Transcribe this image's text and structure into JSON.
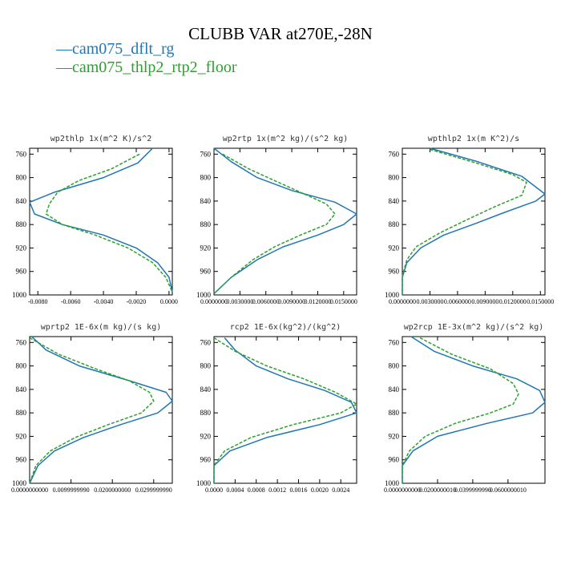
{
  "page": {
    "title": "CLUBB VAR at270E,-28N"
  },
  "legend": [
    {
      "label": "cam075_dflt_rg",
      "color": "#1f77b4",
      "style": "solid"
    },
    {
      "label": "cam075_thlp2_rtp2_floor",
      "color": "#2ca02c",
      "style": "dashed"
    }
  ],
  "chart_data": [
    {
      "type": "line",
      "title": "wp2thlp  1x(m^2 K)/s^2",
      "x_ticks": [
        "-0.0080",
        "-0.0060",
        "-0.0040",
        "-0.0020",
        "0.0000"
      ],
      "xlim": [
        -0.0085,
        0.0002
      ],
      "y_ticks": [
        "760",
        "800",
        "840",
        "880",
        "920",
        "960",
        "1000"
      ],
      "ylim": [
        1000,
        750
      ],
      "series": [
        {
          "color": "#1f77b4",
          "dashed": false,
          "points": [
            [
              -0.001,
              750
            ],
            [
              -0.0019,
              775
            ],
            [
              -0.004,
              800
            ],
            [
              -0.007,
              825
            ],
            [
              -0.0085,
              842
            ],
            [
              -0.0082,
              862
            ],
            [
              -0.0065,
              880
            ],
            [
              -0.004,
              898
            ],
            [
              -0.002,
              920
            ],
            [
              -0.0007,
              945
            ],
            [
              0.0,
              970
            ],
            [
              0.0002,
              995
            ]
          ]
        },
        {
          "color": "#2ca02c",
          "dashed": true,
          "points": [
            [
              -0.0018,
              760
            ],
            [
              -0.0035,
              785
            ],
            [
              -0.0055,
              805
            ],
            [
              -0.0068,
              825
            ],
            [
              -0.0073,
              845
            ],
            [
              -0.0075,
              862
            ],
            [
              -0.0065,
              880
            ],
            [
              -0.0045,
              898
            ],
            [
              -0.0025,
              920
            ],
            [
              -0.001,
              945
            ],
            [
              -0.0002,
              970
            ],
            [
              0.0002,
              995
            ]
          ]
        }
      ]
    },
    {
      "type": "line",
      "title": "wp2rtp  1x(m^2 kg)/(s^2 kg)",
      "x_ticks": [
        "0.0000000",
        "0.0030000",
        "0.0060000",
        "0.0090000",
        "0.0120000",
        "0.0150000"
      ],
      "xlim": [
        0,
        0.0165
      ],
      "y_ticks": [
        "760",
        "800",
        "840",
        "880",
        "920",
        "960",
        "1000"
      ],
      "ylim": [
        1000,
        750
      ],
      "series": [
        {
          "color": "#1f77b4",
          "dashed": false,
          "points": [
            [
              0.0,
              750
            ],
            [
              0.002,
              773
            ],
            [
              0.005,
              800
            ],
            [
              0.009,
              822
            ],
            [
              0.014,
              842
            ],
            [
              0.0165,
              862
            ],
            [
              0.015,
              880
            ],
            [
              0.012,
              898
            ],
            [
              0.008,
              918
            ],
            [
              0.005,
              940
            ],
            [
              0.002,
              970
            ],
            [
              0.0,
              998
            ]
          ]
        },
        {
          "color": "#2ca02c",
          "dashed": true,
          "points": [
            [
              0.001,
              760
            ],
            [
              0.004,
              785
            ],
            [
              0.007,
              805
            ],
            [
              0.01,
              825
            ],
            [
              0.013,
              845
            ],
            [
              0.014,
              862
            ],
            [
              0.013,
              880
            ],
            [
              0.01,
              898
            ],
            [
              0.007,
              918
            ],
            [
              0.0045,
              940
            ],
            [
              0.002,
              970
            ],
            [
              0.0,
              998
            ]
          ]
        }
      ]
    },
    {
      "type": "line",
      "title": "wpthlp2  1x(m K^2)/s",
      "x_ticks": [
        "0.0000000",
        "0.0030000",
        "0.0060000",
        "0.0090000",
        "0.0120000",
        "0.0150000"
      ],
      "xlim": [
        0,
        0.0155
      ],
      "y_ticks": [
        "760",
        "800",
        "840",
        "880",
        "920",
        "960",
        "1000"
      ],
      "ylim": [
        1000,
        750
      ],
      "series": [
        {
          "color": "#1f77b4",
          "dashed": false,
          "points": [
            [
              0.003,
              750
            ],
            [
              0.008,
              772
            ],
            [
              0.013,
              798
            ],
            [
              0.0155,
              828
            ],
            [
              0.0145,
              840
            ],
            [
              0.011,
              860
            ],
            [
              0.008,
              878
            ],
            [
              0.0045,
              898
            ],
            [
              0.002,
              920
            ],
            [
              0.0005,
              945
            ],
            [
              0.0,
              970
            ],
            [
              0.0,
              1000
            ]
          ]
        },
        {
          "color": "#2ca02c",
          "dashed": true,
          "points": [
            [
              0.003,
              752
            ],
            [
              0.008,
              775
            ],
            [
              0.012,
              795
            ],
            [
              0.0135,
              808
            ],
            [
              0.013,
              830
            ],
            [
              0.01,
              850
            ],
            [
              0.007,
              872
            ],
            [
              0.004,
              895
            ],
            [
              0.0015,
              918
            ],
            [
              0.0005,
              940
            ],
            [
              0.0,
              968
            ],
            [
              0.0,
              1000
            ]
          ]
        }
      ]
    },
    {
      "type": "line",
      "title": "wprtp2  1E-6x(m kg)/(s kg)",
      "x_ticks": [
        "0.0000000000",
        "0.0099999990",
        "0.0200000000",
        "0.0299999990"
      ],
      "xlim": [
        0,
        0.0345
      ],
      "y_ticks": [
        "760",
        "800",
        "840",
        "880",
        "920",
        "960",
        "1000"
      ],
      "ylim": [
        1000,
        750
      ],
      "series": [
        {
          "color": "#1f77b4",
          "dashed": false,
          "points": [
            [
              0.0005,
              750
            ],
            [
              0.004,
              773
            ],
            [
              0.012,
              800
            ],
            [
              0.024,
              825
            ],
            [
              0.033,
              845
            ],
            [
              0.0345,
              860
            ],
            [
              0.031,
              880
            ],
            [
              0.022,
              900
            ],
            [
              0.013,
              922
            ],
            [
              0.006,
              945
            ],
            [
              0.002,
              970
            ],
            [
              0.0,
              1000
            ]
          ]
        },
        {
          "color": "#2ca02c",
          "dashed": true,
          "points": [
            [
              0.0,
              752
            ],
            [
              0.007,
              780
            ],
            [
              0.016,
              805
            ],
            [
              0.024,
              825
            ],
            [
              0.029,
              845
            ],
            [
              0.03,
              860
            ],
            [
              0.027,
              880
            ],
            [
              0.019,
              900
            ],
            [
              0.011,
              922
            ],
            [
              0.005,
              945
            ],
            [
              0.0015,
              970
            ],
            [
              0.0,
              1000
            ]
          ]
        }
      ]
    },
    {
      "type": "line",
      "title": "rcp2  1E-6x(kg^2)/(kg^2)",
      "x_ticks": [
        "0.0000",
        "0.0004",
        "0.0008",
        "0.0012",
        "0.0016",
        "0.0020",
        "0.0024"
      ],
      "xlim": [
        0,
        0.0027
      ],
      "y_ticks": [
        "760",
        "800",
        "840",
        "880",
        "920",
        "960",
        "1000"
      ],
      "ylim": [
        1000,
        750
      ],
      "series": [
        {
          "color": "#1f77b4",
          "dashed": false,
          "points": [
            [
              0.0002,
              752
            ],
            [
              0.0004,
              773
            ],
            [
              0.0008,
              800
            ],
            [
              0.0014,
              822
            ],
            [
              0.0021,
              842
            ],
            [
              0.0026,
              862
            ],
            [
              0.0027,
              880
            ],
            [
              0.002,
              900
            ],
            [
              0.001,
              922
            ],
            [
              0.0003,
              945
            ],
            [
              0.0,
              970
            ],
            [
              0.0,
              1000
            ]
          ]
        },
        {
          "color": "#2ca02c",
          "dashed": true,
          "points": [
            [
              0.0,
              752
            ],
            [
              0.0004,
              775
            ],
            [
              0.001,
              800
            ],
            [
              0.0017,
              822
            ],
            [
              0.0023,
              845
            ],
            [
              0.0027,
              865
            ],
            [
              0.0024,
              880
            ],
            [
              0.0015,
              900
            ],
            [
              0.0007,
              922
            ],
            [
              0.0002,
              945
            ],
            [
              0.0,
              970
            ],
            [
              0.0,
              1000
            ]
          ]
        }
      ]
    },
    {
      "type": "line",
      "title": "wp2rcp  1E-3x(m^2 kg)/(s^2 kg)",
      "x_ticks": [
        "0.0000000000",
        "0.0200000010",
        "0.0399999990",
        "0.0600000010"
      ],
      "xlim": [
        0,
        0.081
      ],
      "y_ticks": [
        "760",
        "800",
        "840",
        "880",
        "920",
        "960",
        "1000"
      ],
      "ylim": [
        1000,
        750
      ],
      "series": [
        {
          "color": "#1f77b4",
          "dashed": false,
          "points": [
            [
              0.005,
              750
            ],
            [
              0.018,
              775
            ],
            [
              0.04,
              800
            ],
            [
              0.065,
              822
            ],
            [
              0.078,
              842
            ],
            [
              0.081,
              862
            ],
            [
              0.074,
              880
            ],
            [
              0.048,
              898
            ],
            [
              0.02,
              920
            ],
            [
              0.006,
              945
            ],
            [
              0.0,
              970
            ],
            [
              0.0,
              1000
            ]
          ]
        },
        {
          "color": "#2ca02c",
          "dashed": true,
          "points": [
            [
              0.01,
              752
            ],
            [
              0.028,
              780
            ],
            [
              0.05,
              805
            ],
            [
              0.063,
              830
            ],
            [
              0.066,
              848
            ],
            [
              0.063,
              865
            ],
            [
              0.05,
              880
            ],
            [
              0.03,
              898
            ],
            [
              0.013,
              920
            ],
            [
              0.004,
              945
            ],
            [
              0.0,
              970
            ],
            [
              0.0,
              1000
            ]
          ]
        }
      ]
    }
  ]
}
